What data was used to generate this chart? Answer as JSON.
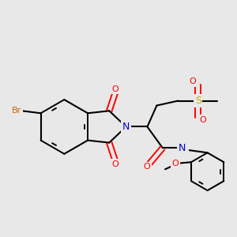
{
  "background_color": "#e8e8e8",
  "atom_colors": {
    "C": "#000000",
    "N": "#0000cc",
    "O": "#ff0000",
    "S": "#ccaa00",
    "Br": "#cc6600",
    "H": "#66aaaa"
  },
  "figsize": [
    3.0,
    3.0
  ],
  "dpi": 100
}
